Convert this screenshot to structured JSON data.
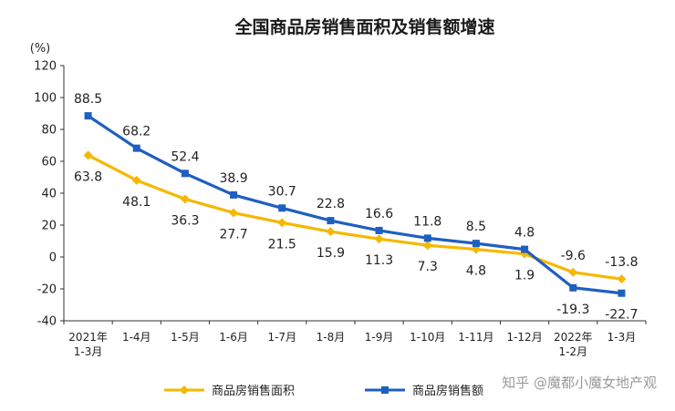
{
  "chart_data": {
    "type": "line",
    "title": "全国商品房销售面积及销售额增速",
    "ylabel": "(%)",
    "xlabel": "",
    "ylim": [
      -40,
      120
    ],
    "yticks": [
      -40,
      -20,
      0,
      20,
      40,
      60,
      80,
      100,
      120
    ],
    "categories": [
      [
        "2021年",
        "1-3月"
      ],
      [
        "1-4月"
      ],
      [
        "1-5月"
      ],
      [
        "1-6月"
      ],
      [
        "1-7月"
      ],
      [
        "1-8月"
      ],
      [
        "1-9月"
      ],
      [
        "1-10月"
      ],
      [
        "1-11月"
      ],
      [
        "1-12月"
      ],
      [
        "2022年",
        "1-2月"
      ],
      [
        "1-3月"
      ]
    ],
    "series": [
      {
        "name": "商品房销售面积",
        "color": "#f5b800",
        "marker": "diamond",
        "values": [
          63.8,
          48.1,
          36.3,
          27.7,
          21.5,
          15.9,
          11.3,
          7.3,
          4.8,
          1.9,
          -9.6,
          -13.8
        ],
        "label_position": [
          "below",
          "below",
          "below",
          "below",
          "below",
          "below",
          "below",
          "below",
          "below",
          "below",
          "above",
          "above"
        ]
      },
      {
        "name": "商品房销售额",
        "color": "#1f5fbf",
        "marker": "square",
        "values": [
          88.5,
          68.2,
          52.4,
          38.9,
          30.7,
          22.8,
          16.6,
          11.8,
          8.5,
          4.8,
          -19.3,
          -22.7
        ],
        "label_position": [
          "above",
          "above",
          "above",
          "above",
          "above",
          "above",
          "above",
          "above",
          "above",
          "above",
          "below",
          "below"
        ]
      }
    ],
    "legend_position": "bottom",
    "grid": false,
    "watermark": "知乎 @魔都小魔女地产观"
  }
}
